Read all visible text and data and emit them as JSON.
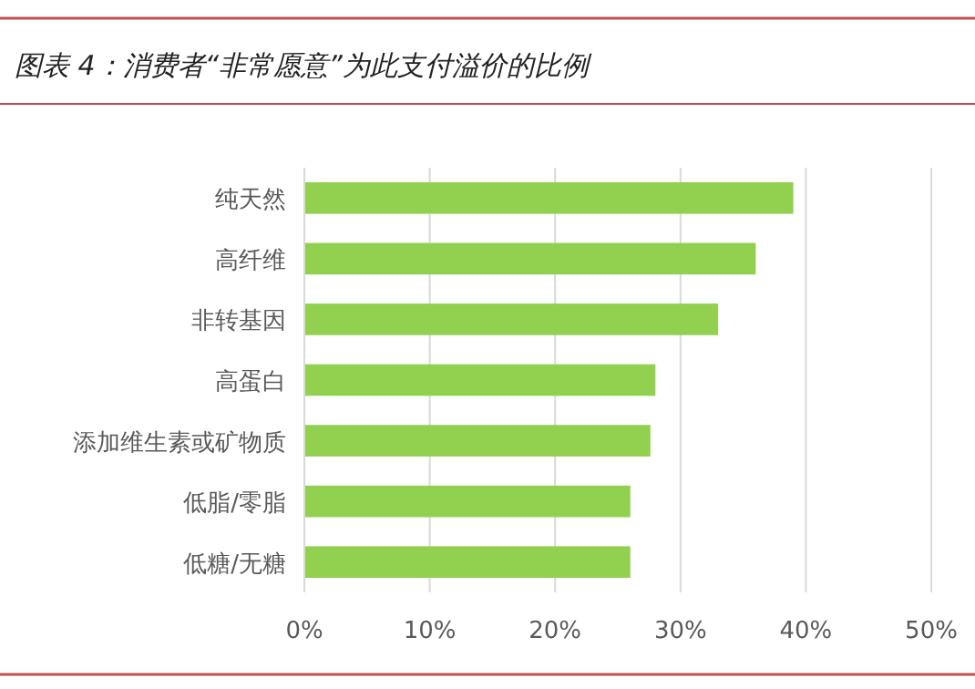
{
  "chart_data": {
    "type": "bar",
    "orientation": "horizontal",
    "title": "图表 4：消费者“非常愿意”为此支付溢价的比例",
    "categories": [
      "纯天然",
      "高纤维",
      "非转基因",
      "高蛋白",
      "添加维生素或矿物质",
      "低脂/零脂",
      "低糖/无糖"
    ],
    "values": [
      39,
      36,
      33,
      28,
      27.6,
      26,
      26
    ],
    "color": "#92d050",
    "xlim": [
      0,
      50
    ],
    "xticks": [
      {
        "value": 0,
        "label": "0%"
      },
      {
        "value": 10,
        "label": "10%"
      },
      {
        "value": 20,
        "label": "20%"
      },
      {
        "value": 30,
        "label": "30%"
      },
      {
        "value": 40,
        "label": "40%"
      },
      {
        "value": 50,
        "label": "50%"
      }
    ],
    "grid": "x"
  }
}
